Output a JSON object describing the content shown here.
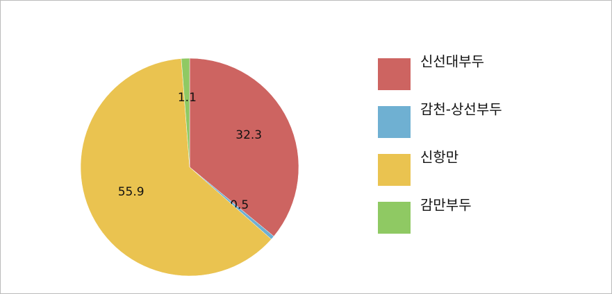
{
  "chart_data": {
    "type": "pie",
    "categories": [
      "신선대부두",
      "감천-상선부두",
      "신항만",
      "감만부두"
    ],
    "values": [
      32.3,
      0.5,
      55.9,
      1.1
    ],
    "colors": [
      "#cd6461",
      "#6fb0d2",
      "#eac350",
      "#8fc963"
    ]
  }
}
